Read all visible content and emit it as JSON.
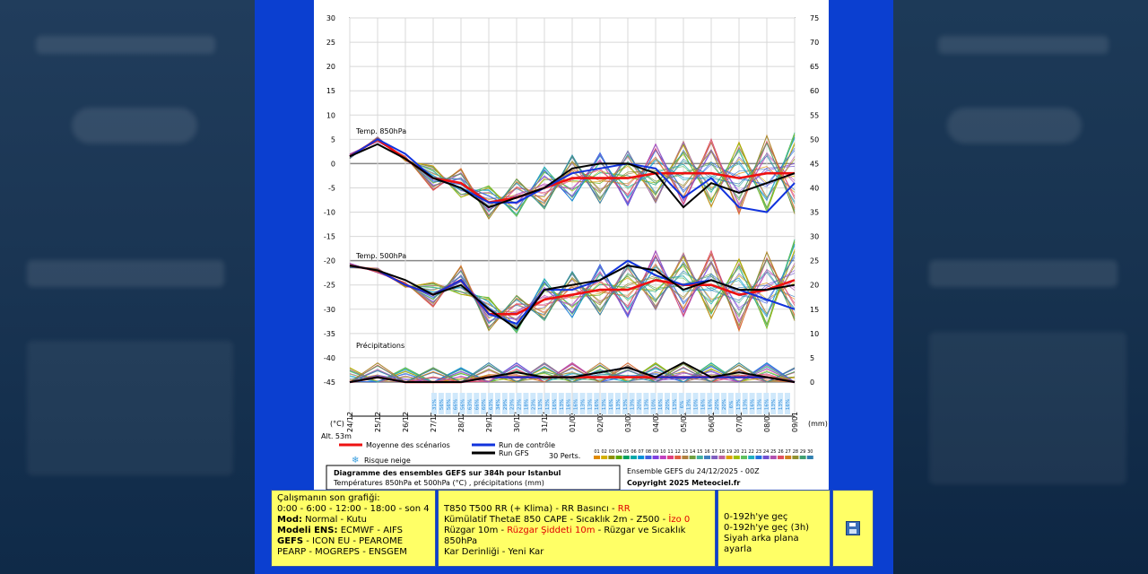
{
  "chart_data": {
    "type": "line",
    "x_ticks": [
      "24/12",
      "25/12",
      "26/12",
      "27/12",
      "28/12",
      "29/12",
      "30/12",
      "31/12",
      "01/01",
      "02/01",
      "03/01",
      "04/01",
      "05/01",
      "06/01",
      "07/01",
      "08/01",
      "09/01"
    ],
    "left_ticks": [
      "30",
      "25",
      "20",
      "15",
      "10",
      "5",
      "0",
      "-5",
      "-10",
      "-15",
      "-20",
      "-25",
      "-30",
      "-35",
      "-40",
      "-45"
    ],
    "right_ticks": [
      "75",
      "70",
      "65",
      "60",
      "55",
      "50",
      "45",
      "40",
      "35",
      "30",
      "25",
      "20",
      "15",
      "10",
      "5",
      "0"
    ],
    "left_unit": "(°C)",
    "right_unit": "(mm)",
    "alt_label": "Alt. 53m",
    "panel_labels": {
      "t850": "Temp. 850hPa",
      "t500": "Temp. 500hPa",
      "precip": "Précipitations"
    },
    "snow_risk_pct": [
      "31%",
      "56%",
      "56%",
      "66%",
      "56%",
      "63%",
      "66%",
      "60%",
      "63%",
      "34%",
      "29%",
      "23%",
      "23%",
      "18%",
      "23%",
      "13%",
      "13%",
      "16%",
      "13%",
      "16%",
      "16%",
      "13%",
      "13%",
      "16%",
      "13%",
      "16%",
      "13%",
      "13%",
      "13%",
      "20%",
      "13%",
      "10%",
      "16%",
      "20%",
      "13%",
      "6%",
      "13%",
      "10%",
      "16%",
      "16%",
      "20%",
      "20%",
      "6%",
      "13%",
      "13%",
      "16%",
      "13%",
      "16%",
      "13%",
      "13%",
      "16%"
    ],
    "series": [
      {
        "name": "Moyenne des scénarios",
        "color": "#ee1111",
        "t850": [
          1.5,
          5,
          1,
          -3,
          -4,
          -8,
          -7,
          -5,
          -3,
          -3,
          -3,
          -2,
          -2,
          -2,
          -3,
          -2,
          -2
        ],
        "t500": [
          -21,
          -22,
          -25,
          -27,
          -24,
          -31,
          -31,
          -28,
          -27,
          -26,
          -26,
          -24,
          -25,
          -25,
          -27,
          -26,
          -24
        ],
        "precip": [
          0,
          1,
          0,
          0,
          0,
          1,
          1,
          1,
          1,
          1,
          1,
          1,
          1,
          1,
          1,
          1,
          0
        ]
      },
      {
        "name": "Run de contrôle",
        "color": "#1133dd",
        "t850": [
          1.5,
          5,
          2,
          -3,
          -5,
          -8,
          -8,
          -5,
          -2,
          -1,
          0,
          -1,
          -7,
          -3,
          -9,
          -10,
          -4
        ],
        "t500": [
          -21,
          -22,
          -25,
          -27,
          -24,
          -31,
          -33,
          -26,
          -26,
          -24,
          -20,
          -23,
          -25,
          -24,
          -26,
          -28,
          -30
        ],
        "precip": [
          0,
          1,
          0,
          0,
          0,
          1,
          1,
          1,
          1,
          2,
          3,
          1,
          1,
          1,
          1,
          1,
          0
        ]
      },
      {
        "name": "Run GFS",
        "color": "#000000",
        "t850": [
          1.5,
          4,
          1,
          -3,
          -5,
          -9,
          -7,
          -5,
          -1,
          0,
          0,
          -2,
          -9,
          -4,
          -6,
          -4,
          -2
        ],
        "t500": [
          -21,
          -22,
          -24,
          -27,
          -25,
          -30,
          -34,
          -26,
          -25,
          -24,
          -21,
          -22,
          -26,
          -24,
          -26,
          -26,
          -25
        ],
        "precip": [
          0,
          1,
          0,
          0,
          0,
          1,
          2,
          1,
          1,
          2,
          3,
          1,
          4,
          1,
          2,
          1,
          0
        ]
      }
    ],
    "legend": {
      "mean": "Moyenne des scénarios",
      "control": "Run de contrôle",
      "gfs": "Run GFS",
      "snow": "Risque neige",
      "perts": "30 Perts.",
      "members": [
        "01",
        "02",
        "03",
        "04",
        "05",
        "06",
        "07",
        "08",
        "09",
        "10",
        "11",
        "12",
        "13",
        "14",
        "15",
        "16",
        "17",
        "18",
        "19",
        "20",
        "21",
        "22",
        "23",
        "24",
        "25",
        "26",
        "27",
        "28",
        "29",
        "30"
      ],
      "member_colors": [
        "#e08b00",
        "#d4b000",
        "#8e8e00",
        "#5aa800",
        "#00a060",
        "#00a8a8",
        "#0090d8",
        "#4060e0",
        "#8040e0",
        "#c040c0",
        "#e04080",
        "#e06040",
        "#b08040",
        "#70a040",
        "#40b0a0",
        "#4080c0",
        "#8060c0",
        "#c060a0",
        "#e0a000",
        "#a0c000",
        "#60c060",
        "#20b0c0",
        "#2070e0",
        "#7050d0",
        "#b050b0",
        "#e05060",
        "#d08020",
        "#909030",
        "#40a070",
        "#3080b0"
      ]
    },
    "caption": {
      "title": "Diagramme des ensembles GEFS sur 384h pour Istanbul",
      "subtitle": "Températures 850hPa et 500hPa (°C) , précipitations (mm)",
      "run": "Ensemble GEFS du 24/12/2025 - 00Z",
      "copyright": "Copyright 2025 Meteociel.fr"
    }
  },
  "toolbar": {
    "col1": {
      "heading": "Çalışmanın son grafiği:",
      "hours": "0:00 - 6:00 - 12:00 - 18:00 - son 4",
      "mod_label": "Mod:",
      "mod_value": "Normal - Kutu",
      "ens_label": "Modeli ENS:",
      "ens_value": "ECMWF - AIFS",
      "gefs": "GEFS",
      "line5_rest": "- ICON EU - PEAROME",
      "line6": "PEARP - MOGREPS - ENSGEM"
    },
    "col2": {
      "l1a": "T850 T500 RR (+ Klima) - RR Basıncı - ",
      "l1b": "RR",
      "l2a": "Kümülatif ThetaE 850 CAPE - Sıcaklık 2m - Z500 - ",
      "l2b": "İzo 0",
      "l3a": "Rüzgar 10m - ",
      "l3b": "Rüzgar Şiddeti 10m",
      "l3c": " - Rüzgar ve Sıcaklık 850hPa",
      "l4": "Kar Derinliği - Yeni Kar"
    },
    "col3": {
      "l1": "0-192h'ye geç",
      "l2": "0-192h'ye geç (3h)",
      "l3": "Siyah arka plana ayarla"
    },
    "save_icon": "floppy-disk-icon"
  }
}
